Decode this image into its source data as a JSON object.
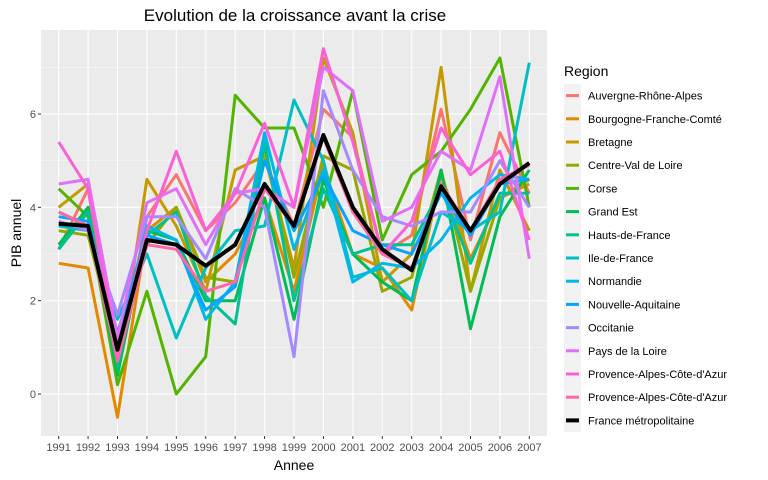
{
  "chart_data": {
    "type": "line",
    "title": "Evolution de la croissance avant la crise",
    "xlabel": "Annee",
    "ylabel": "PIB annuel",
    "ylim": [
      -0.9,
      7.8
    ],
    "yticks": [
      0,
      2,
      4,
      6
    ],
    "grid": true,
    "legend_position": "right",
    "legend_title": "Region",
    "x": [
      "1991",
      "1992",
      "1993",
      "1994",
      "1995",
      "1996",
      "1997",
      "1998",
      "1999",
      "2000",
      "2001",
      "2002",
      "2003",
      "2004",
      "2005",
      "2006",
      "2007"
    ],
    "series": [
      {
        "name": "Auvergne-Rhône-Alpes",
        "color": "#F8766D",
        "width": 3,
        "values": [
          3.1,
          4.4,
          0.5,
          3.8,
          4.7,
          3.5,
          4.1,
          5.0,
          3.6,
          6.1,
          5.5,
          3.0,
          3.4,
          6.1,
          3.3,
          5.6,
          4.3
        ]
      },
      {
        "name": "Bourgogne-Franche-Comté",
        "color": "#E38900",
        "width": 3,
        "values": [
          2.8,
          2.7,
          -0.5,
          3.5,
          4.0,
          2.4,
          3.0,
          4.2,
          2.2,
          4.9,
          3.0,
          2.7,
          1.8,
          4.7,
          2.9,
          4.2,
          4.5
        ]
      },
      {
        "name": "Bretagne",
        "color": "#C49A00",
        "width": 3,
        "values": [
          4.0,
          4.5,
          0.4,
          4.6,
          3.6,
          2.2,
          4.8,
          5.1,
          2.7,
          7.2,
          5.6,
          2.4,
          3.0,
          7.0,
          2.2,
          4.8,
          3.5
        ]
      },
      {
        "name": "Centre-Val de Loire",
        "color": "#99A800",
        "width": 3,
        "values": [
          3.5,
          3.4,
          0.9,
          3.2,
          4.0,
          2.5,
          2.4,
          5.3,
          2.5,
          5.1,
          4.8,
          2.2,
          2.5,
          4.8,
          2.2,
          4.2,
          4.6
        ]
      },
      {
        "name": "Corse",
        "color": "#53B400",
        "width": 3,
        "values": [
          4.4,
          3.8,
          0.2,
          2.2,
          0.0,
          0.8,
          6.4,
          5.7,
          5.7,
          4.0,
          6.5,
          3.3,
          4.7,
          5.2,
          6.1,
          7.2,
          4.0
        ]
      },
      {
        "name": "Grand Est",
        "color": "#00BC56",
        "width": 3,
        "values": [
          3.2,
          4.0,
          0.4,
          3.5,
          3.3,
          2.0,
          2.0,
          4.2,
          1.6,
          4.6,
          3.0,
          2.4,
          2.0,
          4.8,
          1.4,
          3.8,
          4.8
        ]
      },
      {
        "name": "Hauts-de-France",
        "color": "#00C094",
        "width": 3,
        "values": [
          3.1,
          3.9,
          0.6,
          3.4,
          3.9,
          2.1,
          1.5,
          5.4,
          2.0,
          4.4,
          3.0,
          3.2,
          3.2,
          4.4,
          2.8,
          4.3,
          4.3
        ]
      },
      {
        "name": "Ile-de-France",
        "color": "#00BFC4",
        "width": 3,
        "values": [
          3.6,
          3.5,
          1.6,
          3.0,
          1.2,
          2.7,
          3.5,
          3.6,
          6.3,
          5.0,
          2.5,
          2.7,
          2.0,
          3.9,
          3.5,
          3.9,
          7.1
        ]
      },
      {
        "name": "Normandie",
        "color": "#00B6EB",
        "width": 3,
        "values": [
          3.9,
          3.6,
          1.0,
          3.6,
          3.3,
          1.6,
          2.4,
          5.6,
          3.1,
          4.8,
          2.4,
          2.8,
          2.7,
          3.3,
          4.2,
          4.7,
          4.6
        ]
      },
      {
        "name": "Nouvelle-Aquitaine",
        "color": "#06A4FF",
        "width": 3,
        "values": [
          3.8,
          3.7,
          1.3,
          3.4,
          3.2,
          1.8,
          2.3,
          5.0,
          3.5,
          4.7,
          3.5,
          3.2,
          3.0,
          4.3,
          3.4,
          4.5,
          4.6
        ]
      },
      {
        "name": "Occitanie",
        "color": "#A58AFF",
        "width": 3,
        "values": [
          3.7,
          3.5,
          1.7,
          3.8,
          3.8,
          2.9,
          4.4,
          4.0,
          0.8,
          6.5,
          4.8,
          3.8,
          3.6,
          3.9,
          3.9,
          5.0,
          4.0
        ]
      },
      {
        "name": "Pays de la Loire",
        "color": "#DF70F8",
        "width": 3,
        "values": [
          4.5,
          4.6,
          1.2,
          4.1,
          4.4,
          3.2,
          4.3,
          4.4,
          4.0,
          7.0,
          6.5,
          3.7,
          4.0,
          5.2,
          4.8,
          6.8,
          2.9
        ]
      },
      {
        "name": "Provence-Alpes-Côte-d'Azur",
        "color": "#FB61D7",
        "width": 3,
        "values": [
          5.4,
          4.4,
          0.9,
          3.5,
          5.2,
          3.5,
          4.3,
          5.8,
          4.0,
          7.4,
          5.4,
          3.0,
          3.7,
          5.7,
          4.7,
          5.2,
          3.3
        ]
      },
      {
        "name": "Provence-Alpes-Côte-d'Azur",
        "color": "#FF66A8",
        "width": 3,
        "values": [
          3.9,
          3.6,
          0.7,
          3.2,
          3.1,
          2.2,
          2.4,
          4.4,
          3.6,
          5.5,
          3.9,
          3.0,
          2.7,
          4.5,
          3.5,
          4.6,
          4.9
        ]
      },
      {
        "name": "France métropolitaine",
        "color": "#000000",
        "width": 4,
        "values": [
          3.65,
          3.6,
          0.95,
          3.3,
          3.2,
          2.75,
          3.2,
          4.5,
          3.6,
          5.55,
          4.0,
          3.1,
          2.65,
          4.45,
          3.5,
          4.5,
          4.95
        ]
      }
    ]
  }
}
